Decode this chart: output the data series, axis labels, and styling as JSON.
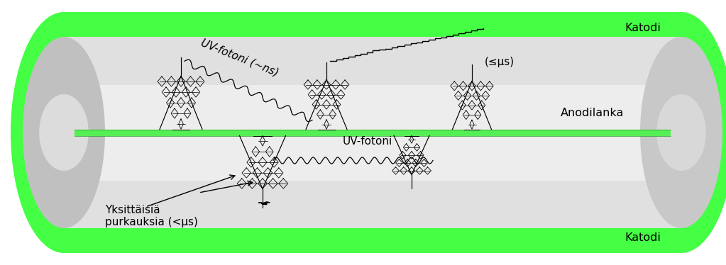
{
  "fig_width": 10.23,
  "fig_height": 3.74,
  "dpi": 100,
  "bg_color": "#ffffff",
  "tube_green": "#44ff44",
  "tube_inner_color": "#d8d8d8",
  "anode_green": "#44ee44",
  "text_color": "#000000",
  "label_katodi_top": "Katodi",
  "label_katodi_bottom": "Katodi",
  "label_anodilanka": "Anodilanka",
  "label_uv1": "UV-fotoni (~ns)",
  "label_uv2": "UV-fotoni",
  "label_mus": "(≤μs)",
  "label_yksittaisia": "Yksittäisiä\npurkauksia (<μs)"
}
